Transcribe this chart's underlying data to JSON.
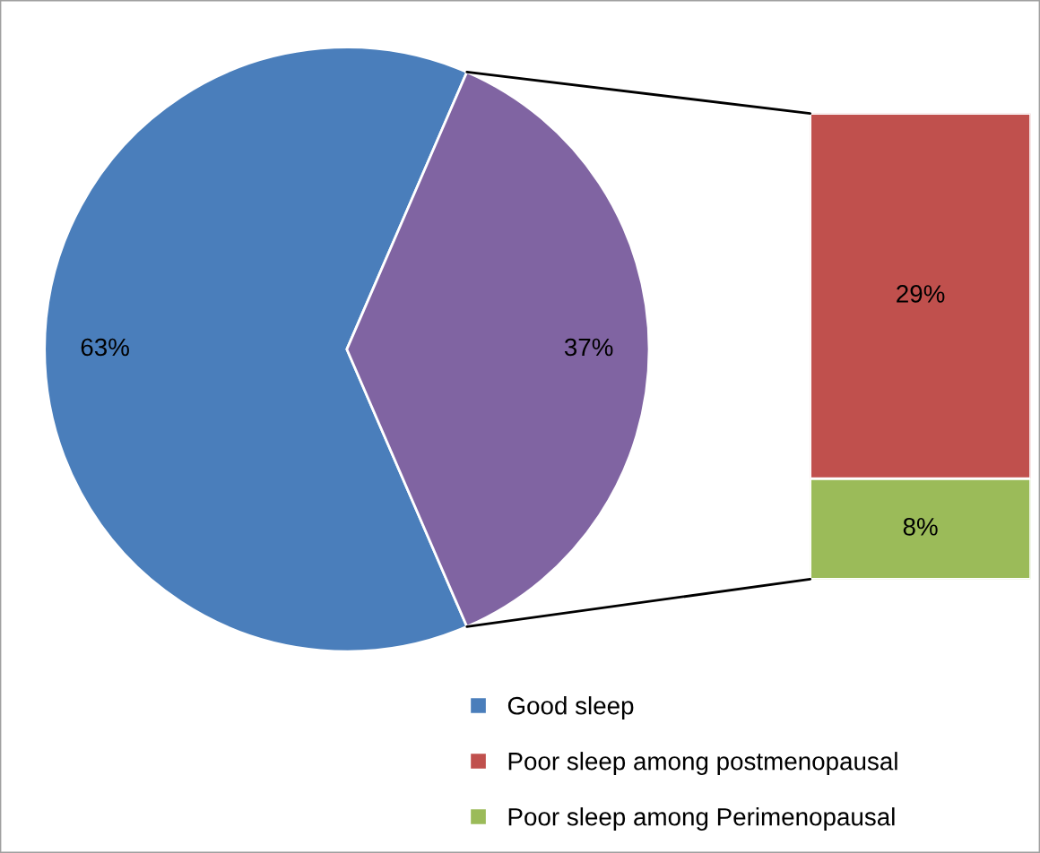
{
  "chart_data": [
    {
      "type": "pie",
      "categories": [
        "Good sleep",
        null
      ],
      "values": [
        63,
        37
      ],
      "colors": [
        "#4a7ebb",
        "#8064a2"
      ],
      "value_labels": [
        "63%",
        "37%"
      ],
      "legend": "bottom"
    },
    {
      "type": "bar",
      "stacked": true,
      "categories": [
        null
      ],
      "series": [
        {
          "name": "Poor sleep among Perimenopausal",
          "color": "#9bbb59",
          "values": [
            8
          ],
          "value_labels": [
            "8%"
          ]
        },
        {
          "name": "Poor sleep among postmenopausal",
          "color": "#c0504d",
          "values": [
            29
          ],
          "value_labels": [
            "29%"
          ]
        }
      ],
      "legend": "bottom"
    }
  ]
}
